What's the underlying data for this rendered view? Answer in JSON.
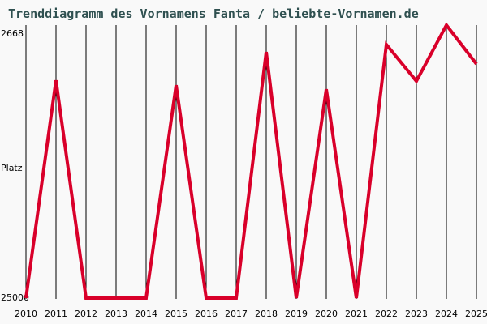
{
  "title": "Trenddiagramm des Vornamens Fanta / beliebte-Vornamen.de",
  "y_axis": {
    "label": "Platz",
    "top_label": "2668",
    "bottom_label": "25000"
  },
  "colors": {
    "line": "#d9002a",
    "grid": "#000000",
    "title": "#2f5050",
    "background": "#f9f9f9"
  },
  "chart_data": {
    "type": "line",
    "title": "Trenddiagramm des Vornamens Fanta / beliebte-Vornamen.de",
    "xlabel": "",
    "ylabel": "Platz",
    "y_inverted": true,
    "ylim": [
      25000,
      2668
    ],
    "grid": "vertical",
    "categories": [
      "2010",
      "2011",
      "2012",
      "2013",
      "2014",
      "2015",
      "2016",
      "2017",
      "2018",
      "2019",
      "2020",
      "2021",
      "2022",
      "2023",
      "2024",
      "2025"
    ],
    "series": [
      {
        "name": "Fanta",
        "values": [
          25000,
          7180,
          25000,
          25000,
          25000,
          7580,
          25000,
          25000,
          4860,
          25000,
          7910,
          25000,
          4260,
          7250,
          2668,
          5850
        ]
      }
    ]
  }
}
